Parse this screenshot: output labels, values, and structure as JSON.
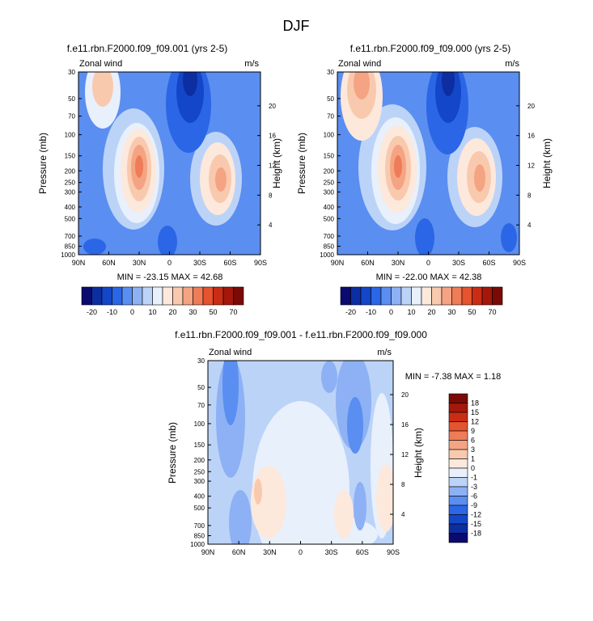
{
  "figure_title": "DJF",
  "colors": {
    "scale_top": [
      "#0a0a70",
      "#0d2ea0",
      "#1446c8",
      "#2b66e6",
      "#5a8ef0",
      "#8db1f4",
      "#bcd3f8",
      "#e8f0fc",
      "#fde8dc",
      "#f9c9ae",
      "#f4a483",
      "#ef7c58",
      "#e6532f",
      "#c92d15",
      "#a3180a",
      "#7a0a05"
    ],
    "scale_diff": [
      "#0a0a70",
      "#0d2ea0",
      "#1446c8",
      "#2b66e6",
      "#5a8ef0",
      "#8db1f4",
      "#bcd3f8",
      "#e8f0fc",
      "#fde8dc",
      "#f9c9ae",
      "#f4a483",
      "#ef7c58",
      "#e6532f",
      "#c92d15",
      "#a3180a",
      "#7a0a05"
    ]
  },
  "chart_data": [
    {
      "type": "heatmap",
      "title": "f.e11.rbn.F2000.f09_f09.001 (yrs 2-5)",
      "left_label": "Zonal wind",
      "right_label": "m/s",
      "ylabel": "Pressure (mb)",
      "ylabel_right": "Height (km)",
      "x_ticks": [
        "90N",
        "60N",
        "30N",
        "0",
        "30S",
        "60S",
        "90S"
      ],
      "x_values": [
        90,
        60,
        30,
        0,
        -30,
        -60,
        -90
      ],
      "xlim": [
        90,
        -90
      ],
      "y_ticks": [
        "30",
        "50",
        "70",
        "100",
        "150",
        "200",
        "250",
        "300",
        "400",
        "500",
        "700",
        "850",
        "1000"
      ],
      "y_values": [
        30,
        50,
        70,
        100,
        150,
        200,
        250,
        300,
        400,
        500,
        700,
        850,
        1000
      ],
      "ylim": [
        30,
        1000
      ],
      "y_scale": "log",
      "height_ticks": [
        "20",
        "16",
        "12",
        "8",
        "4"
      ],
      "height_values": [
        20,
        16,
        12,
        8,
        4
      ],
      "min_max": "MIN = -23.15  MAX = 42.68",
      "min": -23.15,
      "max": 42.68,
      "levels": [
        "-20",
        "-10",
        "0",
        "10",
        "20",
        "30",
        "50",
        "70"
      ],
      "features": [
        {
          "lat": 30,
          "pressure": 200,
          "value": 40
        },
        {
          "lat": -50,
          "pressure": 250,
          "value": 32
        },
        {
          "lat": 65,
          "pressure": 35,
          "value": 15
        },
        {
          "lat": -20,
          "pressure": 35,
          "value": -22
        }
      ]
    },
    {
      "type": "heatmap",
      "title": "f.e11.rbn.F2000.f09_f09.000 (yrs 2-5)",
      "left_label": "Zonal wind",
      "right_label": "m/s",
      "ylabel": "Pressure (mb)",
      "ylabel_right": "Height (km)",
      "x_ticks": [
        "90N",
        "60N",
        "30N",
        "0",
        "30S",
        "60S",
        "90S"
      ],
      "x_values": [
        90,
        60,
        30,
        0,
        -30,
        -60,
        -90
      ],
      "xlim": [
        90,
        -90
      ],
      "y_ticks": [
        "30",
        "50",
        "70",
        "100",
        "150",
        "200",
        "250",
        "300",
        "400",
        "500",
        "700",
        "850",
        "1000"
      ],
      "y_values": [
        30,
        50,
        70,
        100,
        150,
        200,
        250,
        300,
        400,
        500,
        700,
        850,
        1000
      ],
      "ylim": [
        30,
        1000
      ],
      "y_scale": "log",
      "height_ticks": [
        "20",
        "16",
        "12",
        "8",
        "4"
      ],
      "height_values": [
        20,
        16,
        12,
        8,
        4
      ],
      "min_max": "MIN = -22.00  MAX = 42.38",
      "min": -22.0,
      "max": 42.38,
      "levels": [
        "-20",
        "-10",
        "0",
        "10",
        "20",
        "30",
        "50",
        "70"
      ],
      "features": [
        {
          "lat": 30,
          "pressure": 200,
          "value": 40
        },
        {
          "lat": -50,
          "pressure": 250,
          "value": 32
        },
        {
          "lat": 65,
          "pressure": 35,
          "value": 22
        },
        {
          "lat": -20,
          "pressure": 35,
          "value": -22
        }
      ]
    },
    {
      "type": "heatmap",
      "title": "f.e11.rbn.F2000.f09_f09.001 - f.e11.rbn.F2000.f09_f09.000",
      "left_label": "Zonal wind",
      "right_label": "m/s",
      "ylabel": "Pressure (mb)",
      "ylabel_right": "Height (km)",
      "x_ticks": [
        "90N",
        "60N",
        "30N",
        "0",
        "30S",
        "60S",
        "90S"
      ],
      "x_values": [
        90,
        60,
        30,
        0,
        -30,
        -60,
        -90
      ],
      "xlim": [
        90,
        -90
      ],
      "y_ticks": [
        "30",
        "50",
        "70",
        "100",
        "150",
        "200",
        "250",
        "300",
        "400",
        "500",
        "700",
        "850",
        "1000"
      ],
      "y_values": [
        30,
        50,
        70,
        100,
        150,
        200,
        250,
        300,
        400,
        500,
        700,
        850,
        1000
      ],
      "ylim": [
        30,
        1000
      ],
      "y_scale": "log",
      "height_ticks": [
        "20",
        "16",
        "12",
        "8",
        "4"
      ],
      "height_values": [
        20,
        16,
        12,
        8,
        4
      ],
      "min_max": "MIN = -7.38  MAX =  1.18",
      "min": -7.38,
      "max": 1.18,
      "levels": [
        "18",
        "15",
        "12",
        "9",
        "6",
        "3",
        "1",
        "0",
        "-1",
        "-3",
        "-6",
        "-9",
        "-12",
        "-15",
        "-18"
      ],
      "features": [
        {
          "lat": 68,
          "pressure": 40,
          "value": -7
        },
        {
          "lat": -40,
          "pressure": 60,
          "value": -5
        },
        {
          "lat": -60,
          "pressure": 200,
          "value": -3
        },
        {
          "lat": 40,
          "pressure": 350,
          "value": 1
        }
      ]
    }
  ]
}
